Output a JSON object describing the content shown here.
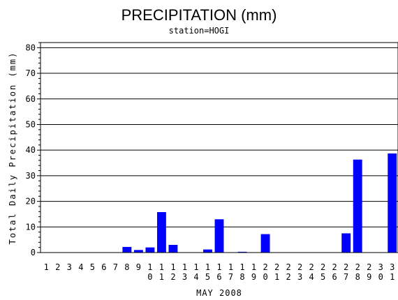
{
  "chart_data": {
    "type": "bar",
    "title": "PRECIPITATION (mm)",
    "subtitle": "station=HOGI",
    "xlabel": "MAY 2008",
    "ylabel": "Total Daily Precipitation (mm)",
    "ylim": [
      0,
      82
    ],
    "yticks": [
      0,
      10,
      20,
      30,
      40,
      50,
      60,
      70,
      80
    ],
    "grid": true,
    "bar_color": "#0000ff",
    "categories": [
      "1",
      "2",
      "3",
      "4",
      "5",
      "6",
      "7",
      "8",
      "9",
      "10",
      "11",
      "12",
      "13",
      "14",
      "15",
      "16",
      "17",
      "18",
      "19",
      "20",
      "21",
      "22",
      "23",
      "24",
      "25",
      "26",
      "27",
      "28",
      "29",
      "30",
      "31"
    ],
    "values": [
      0,
      0,
      0,
      0,
      0,
      0,
      0,
      2.2,
      1.0,
      2.0,
      15.8,
      3.0,
      0,
      0,
      1.2,
      13.0,
      0,
      0.3,
      0,
      7.2,
      0,
      0,
      0,
      0,
      0,
      0,
      7.5,
      36.3,
      0,
      0,
      38.7
    ]
  }
}
